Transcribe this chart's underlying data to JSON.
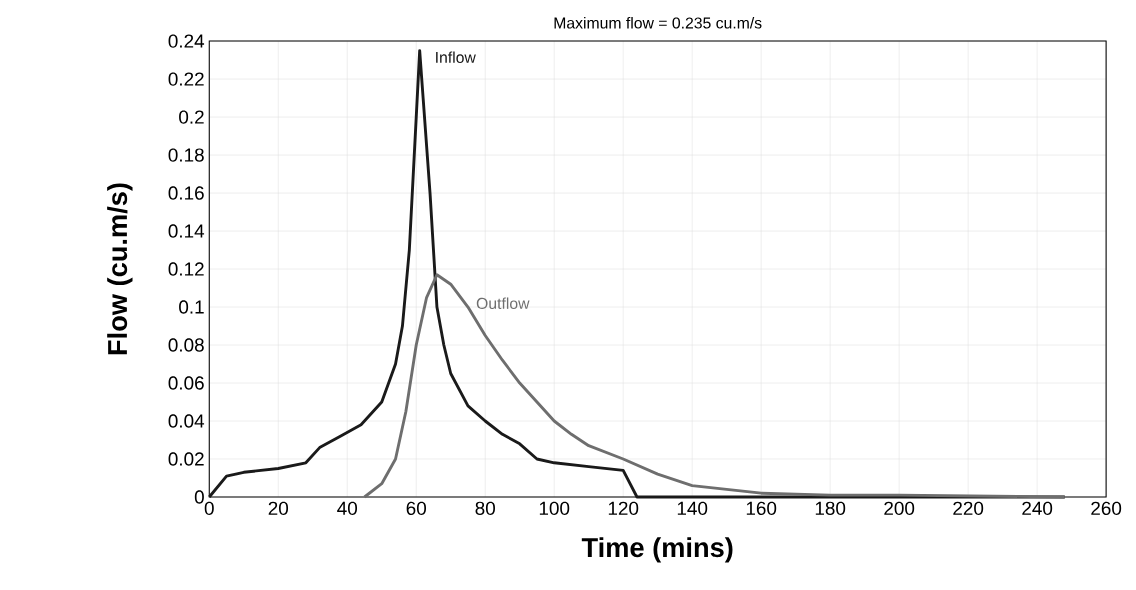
{
  "chart_data": {
    "type": "line",
    "title": "Maximum flow = 0.235 cu.m/s",
    "xlabel": "Time (mins)",
    "ylabel": "Flow (cu.m/s)",
    "xlim": [
      0,
      260
    ],
    "xticks": [
      0,
      20,
      40,
      60,
      80,
      100,
      120,
      140,
      160,
      180,
      200,
      220,
      240,
      260
    ],
    "ylim": [
      0,
      0.24
    ],
    "yticks": [
      0,
      0.02,
      0.04,
      0.06,
      0.08,
      0.1,
      0.12,
      0.14,
      0.16,
      0.18,
      0.2,
      0.22,
      0.24
    ],
    "grid": true,
    "legend": false,
    "series": [
      {
        "name": "Inflow",
        "color": "#1a1a1a",
        "x": [
          0,
          5,
          10,
          20,
          28,
          32,
          38,
          44,
          50,
          54,
          56,
          58,
          60,
          61,
          62,
          64,
          66,
          68,
          70,
          75,
          80,
          85,
          90,
          95,
          100,
          110,
          120,
          124,
          248
        ],
        "values": [
          0,
          0.011,
          0.013,
          0.015,
          0.018,
          0.026,
          0.032,
          0.038,
          0.05,
          0.07,
          0.09,
          0.13,
          0.2,
          0.235,
          0.21,
          0.16,
          0.1,
          0.08,
          0.065,
          0.048,
          0.04,
          0.033,
          0.028,
          0.02,
          0.018,
          0.016,
          0.014,
          0,
          0
        ]
      },
      {
        "name": "Outflow",
        "color": "#6e6e6e",
        "x": [
          45,
          50,
          54,
          57,
          60,
          63,
          66,
          70,
          75,
          80,
          85,
          90,
          95,
          100,
          105,
          110,
          120,
          130,
          140,
          160,
          180,
          200,
          248
        ],
        "values": [
          0,
          0.007,
          0.02,
          0.045,
          0.08,
          0.105,
          0.117,
          0.112,
          0.1,
          0.085,
          0.072,
          0.06,
          0.05,
          0.04,
          0.033,
          0.027,
          0.02,
          0.012,
          0.006,
          0.002,
          0.001,
          0.001,
          0
        ]
      }
    ]
  }
}
